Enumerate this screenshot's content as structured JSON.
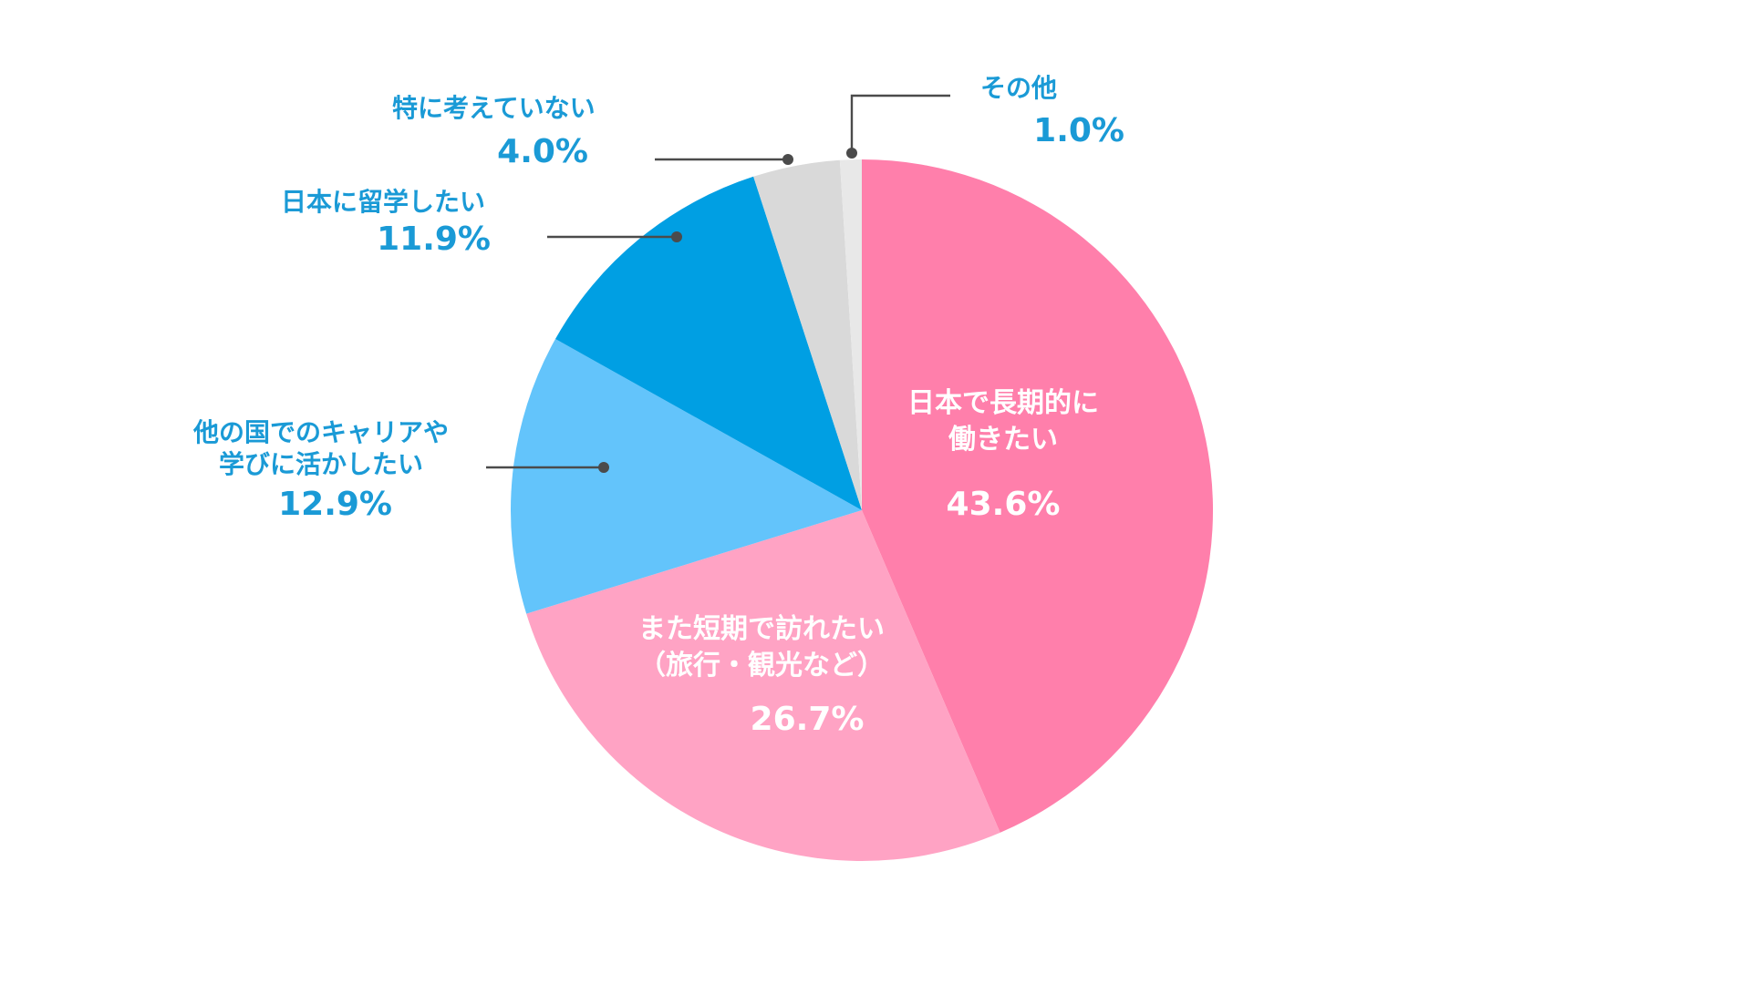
{
  "chart_data": {
    "type": "pie",
    "start": "12 o'clock",
    "direction": "clockwise",
    "slices": [
      {
        "label_lines": [
          "日本で長期的に",
          "働きたい"
        ],
        "value": 43.6,
        "value_label": "43.6%",
        "color": "#ff7fab",
        "label_placement": "inside"
      },
      {
        "label_lines": [
          "また短期で訪れたい",
          "（旅行・観光など）"
        ],
        "value": 26.7,
        "value_label": "26.7%",
        "color": "#ffa3c4",
        "label_placement": "inside"
      },
      {
        "label_lines": [
          "他の国でのキャリアや",
          "学びに活かしたい"
        ],
        "value": 12.9,
        "value_label": "12.9%",
        "color": "#63c4fb",
        "label_placement": "outside"
      },
      {
        "label_lines": [
          "日本に留学したい"
        ],
        "value": 11.9,
        "value_label": "11.9%",
        "color": "#009fe3",
        "label_placement": "outside"
      },
      {
        "label_lines": [
          "特に考えていない"
        ],
        "value": 4.0,
        "value_label": "4.0%",
        "color": "#d9d9d9",
        "label_placement": "outside"
      },
      {
        "label_lines": [
          "その他"
        ],
        "value": 1.0,
        "value_label": "1.0%",
        "color": "#e8e8e8",
        "label_placement": "outside"
      }
    ],
    "label_color_outside": "#1a9ad6",
    "label_color_inside": "#ffffff",
    "leader_color": "#4b4b4b"
  }
}
